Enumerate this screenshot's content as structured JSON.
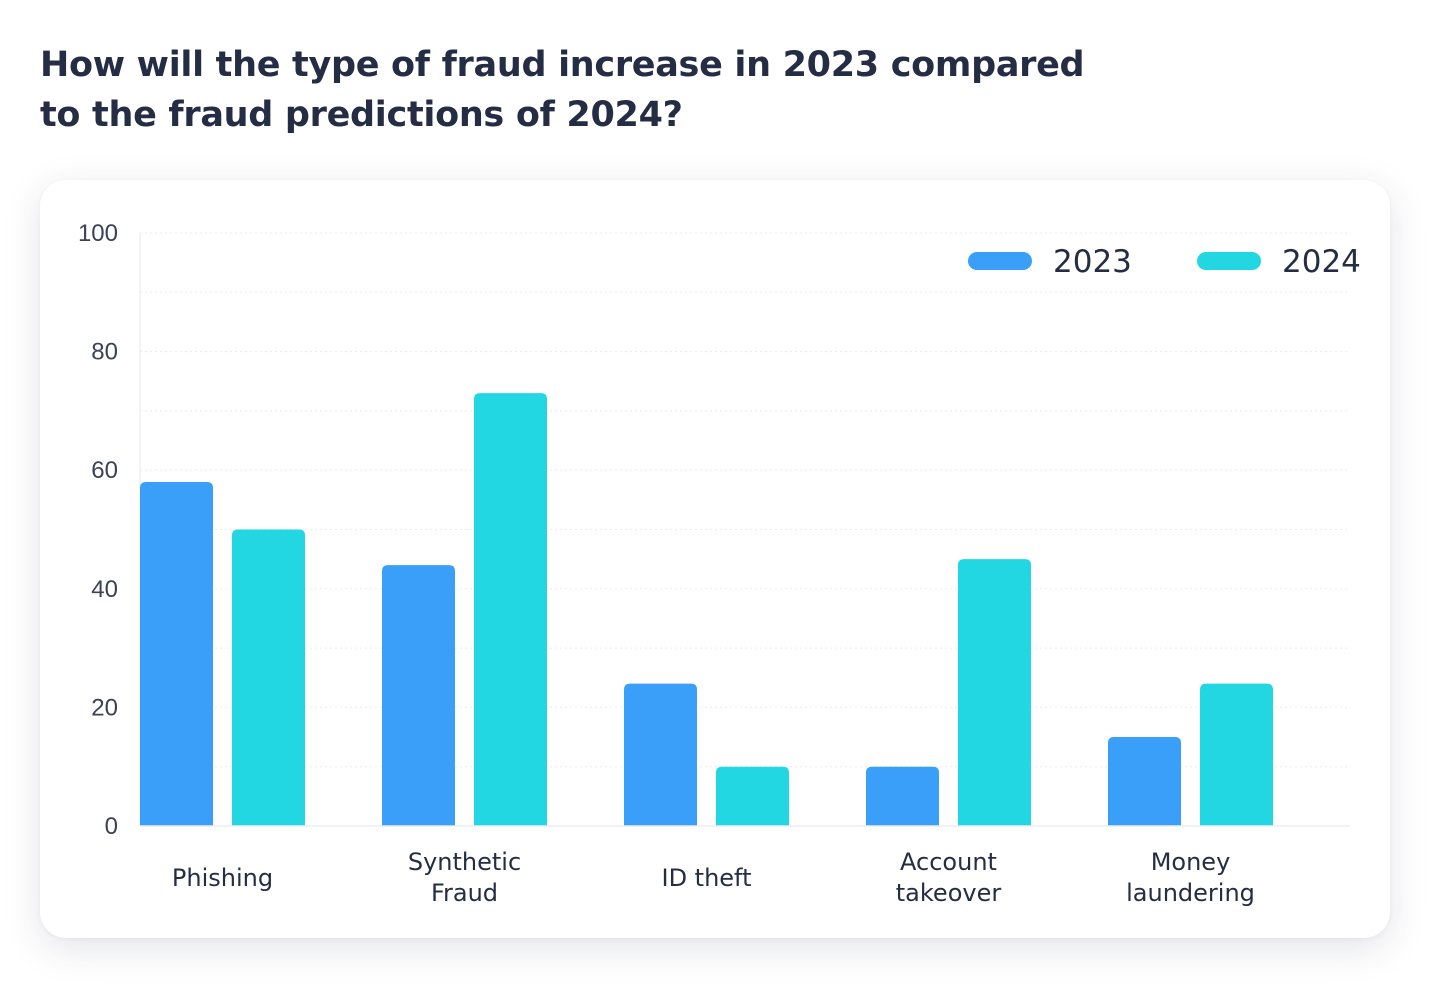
{
  "title_lines": [
    "How will the type of fraud increase in 2023 compared",
    "to the fraud predictions of 2024?"
  ],
  "colors": {
    "series_2023": "#3a9ff9",
    "series_2024": "#22d6e2",
    "text": "#252d44",
    "grid": "#e9ebf0"
  },
  "chart_data": {
    "type": "bar",
    "title": "How will the type of fraud increase in 2023 compared to the fraud predictions of 2024?",
    "categories": [
      [
        "Phishing"
      ],
      [
        "Synthetic",
        "Fraud"
      ],
      [
        "ID theft"
      ],
      [
        "Account",
        "takeover"
      ],
      [
        "Money",
        "laundering"
      ]
    ],
    "series": [
      {
        "name": "2023",
        "color": "#3a9ff9",
        "values": [
          58,
          44,
          24,
          10,
          15
        ]
      },
      {
        "name": "2024",
        "color": "#22d6e2",
        "values": [
          50,
          73,
          10,
          45,
          24
        ]
      }
    ],
    "ylim": [
      0,
      100
    ],
    "yticks": [
      0,
      20,
      40,
      60,
      80,
      100
    ],
    "xlabel": "",
    "ylabel": "",
    "grid": true,
    "legend_position": "top-right"
  }
}
